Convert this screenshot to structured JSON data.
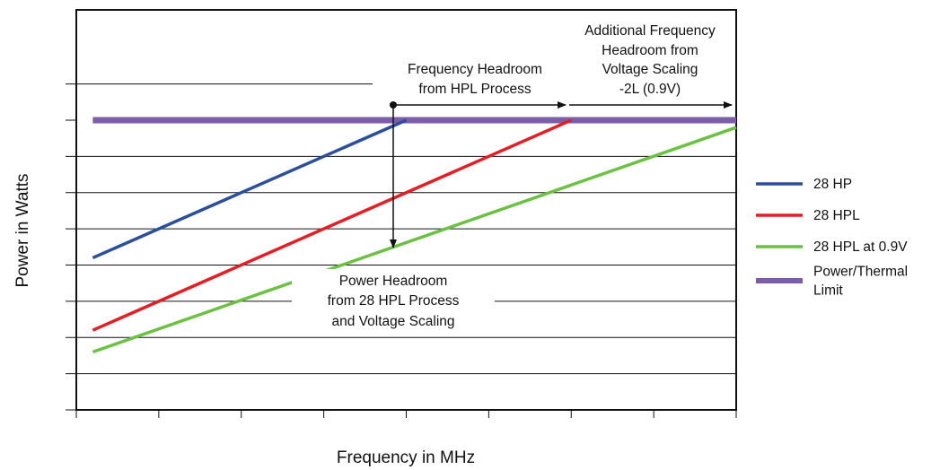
{
  "chart_data": {
    "type": "line",
    "title": "",
    "xlabel": "Frequency in MHz",
    "ylabel": "Power in Watts",
    "xlim": [
      0,
      8
    ],
    "ylim": [
      0,
      8
    ],
    "grid": true,
    "legend_position": "right",
    "series": [
      {
        "name": "28 HP",
        "color": "#2b4f9b",
        "x": [
          0.2,
          4.0
        ],
        "y": [
          4.2,
          8.0
        ]
      },
      {
        "name": "28 HPL",
        "color": "#e31e25",
        "x": [
          0.2,
          6.0
        ],
        "y": [
          2.2,
          8.0
        ]
      },
      {
        "name": "28 HPL at 0.9V",
        "color": "#6ac142",
        "x": [
          0.2,
          8.0
        ],
        "y": [
          1.6,
          7.8
        ]
      },
      {
        "name": "Power/Thermal Limit",
        "color": "#7b5ea7",
        "x": [
          0.2,
          8.0
        ],
        "y": [
          8.0,
          8.0
        ]
      }
    ],
    "annotations": {
      "freq_headroom": [
        "Frequency Headroom",
        "from HPL Process"
      ],
      "additional_headroom": [
        "Additional Frequency",
        "Headroom from",
        "Voltage Scaling",
        "-2L (0.9V)"
      ],
      "power_headroom": [
        "Power Headroom",
        "from 28 HPL Process",
        "and Voltage Scaling"
      ]
    }
  }
}
